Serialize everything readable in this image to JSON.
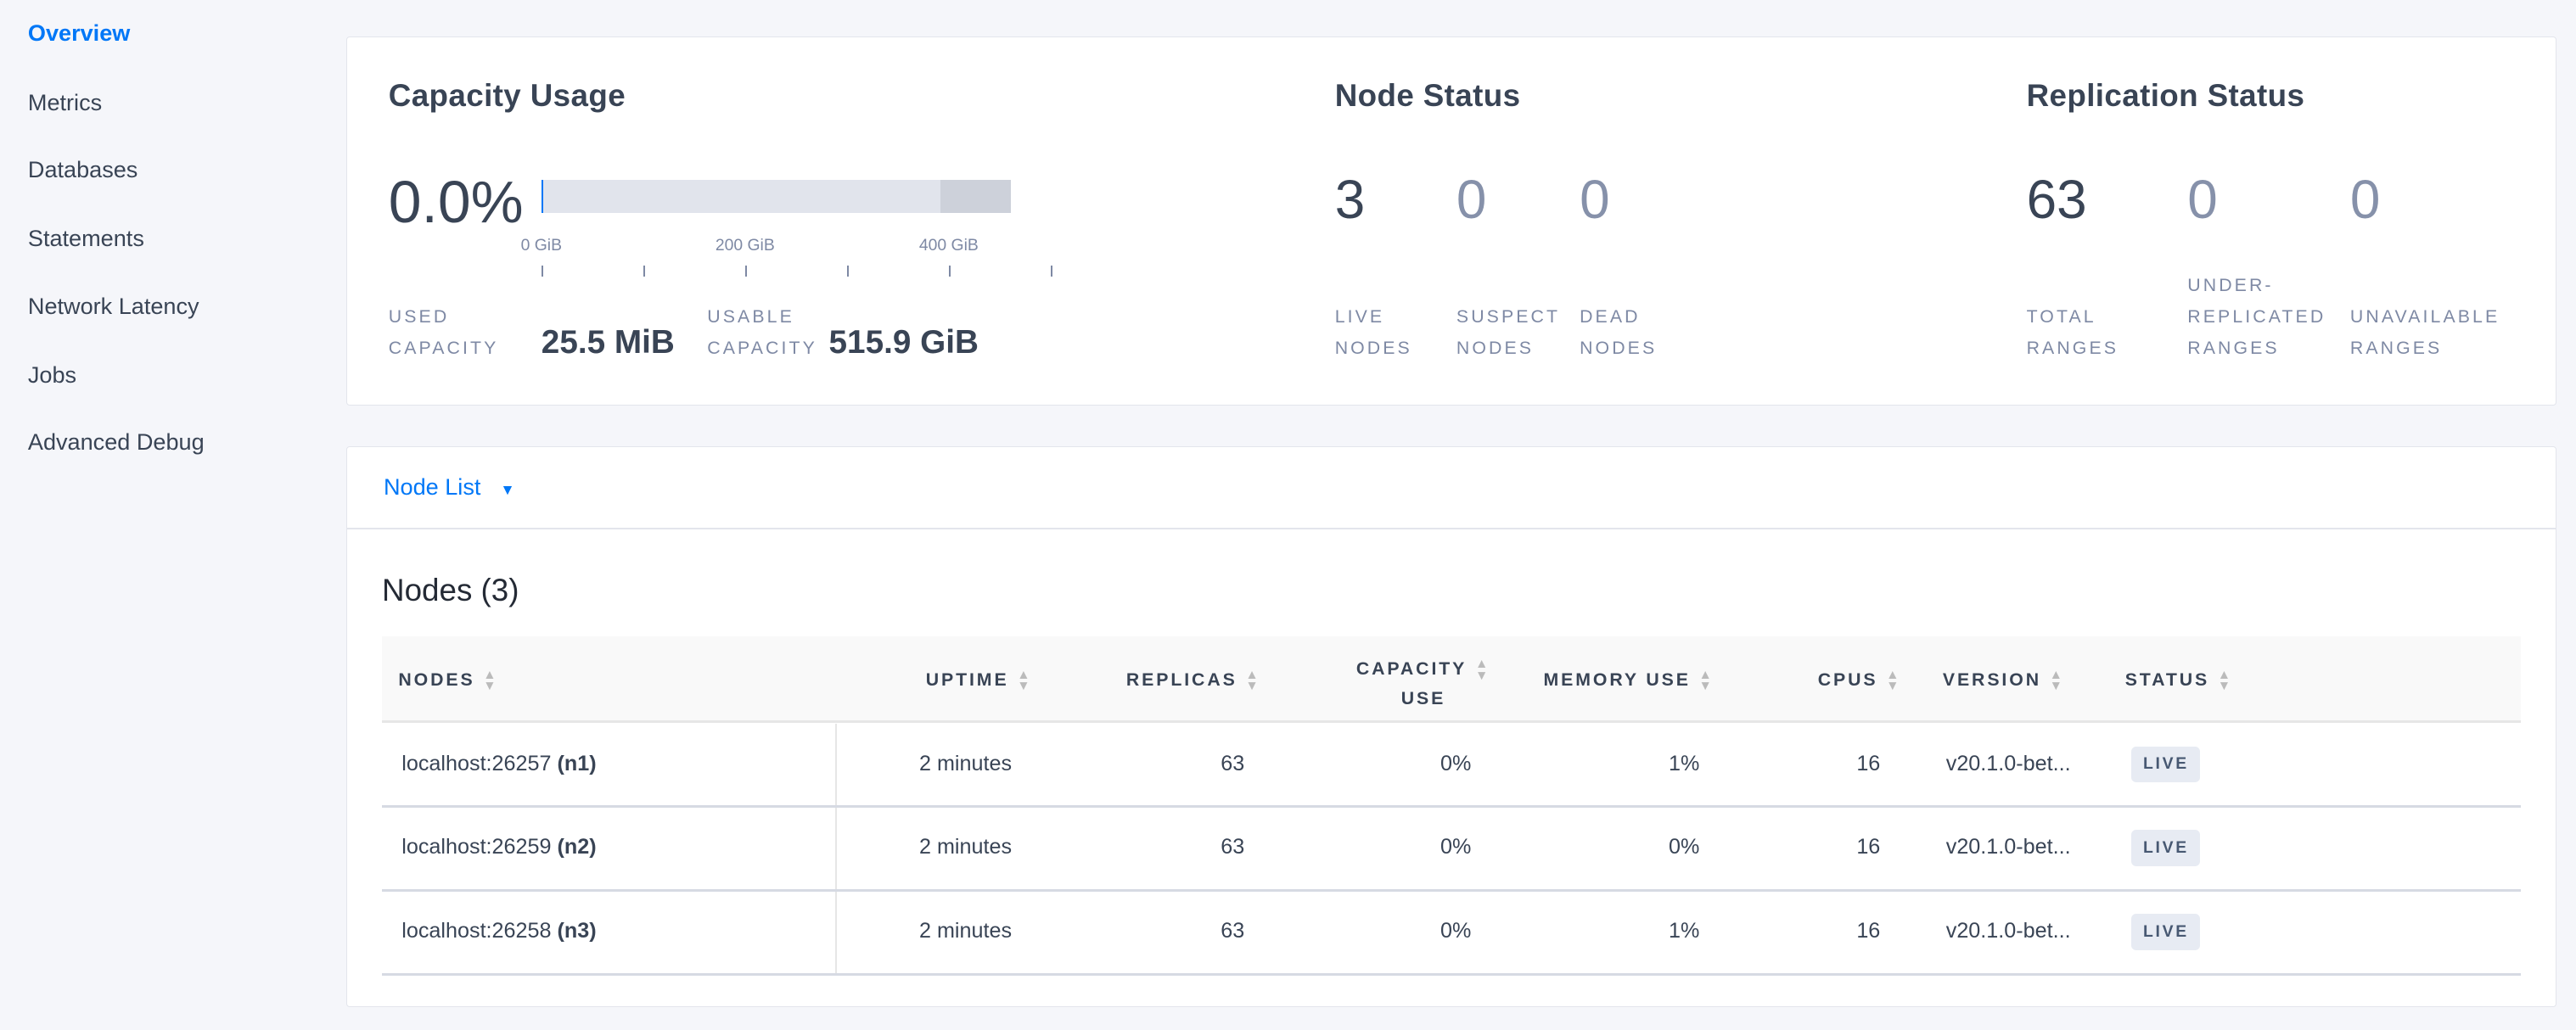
{
  "sidebar": {
    "items": [
      {
        "label": "Overview",
        "active": true
      },
      {
        "label": "Metrics"
      },
      {
        "label": "Databases"
      },
      {
        "label": "Statements"
      },
      {
        "label": "Network Latency"
      },
      {
        "label": "Jobs"
      },
      {
        "label": "Advanced Debug"
      }
    ]
  },
  "capacity": {
    "title": "Capacity Usage",
    "percent": "0.0%",
    "used_fraction": 0.0,
    "ticks": [
      "0 GiB",
      "200 GiB",
      "400 GiB"
    ],
    "used_label_1": "USED",
    "used_label_2": "CAPACITY",
    "used_value": "25.5 MiB",
    "usable_label_1": "USABLE",
    "usable_label_2": "CAPACITY",
    "usable_value": "515.9 GiB"
  },
  "node_status": {
    "title": "Node Status",
    "live": "3",
    "live_label_1": "LIVE",
    "live_label_2": "NODES",
    "suspect": "0",
    "suspect_label_1": "SUSPECT",
    "suspect_label_2": "NODES",
    "dead": "0",
    "dead_label_1": "DEAD",
    "dead_label_2": "NODES"
  },
  "replication": {
    "title": "Replication Status",
    "total": "63",
    "total_label_1": "TOTAL",
    "total_label_2": "RANGES",
    "under": "0",
    "under_label_1": "UNDER-",
    "under_label_2": "REPLICATED",
    "under_label_3": "RANGES",
    "unavail": "0",
    "unavail_label_1": "UNAVAILABLE",
    "unavail_label_2": "RANGES"
  },
  "node_list": {
    "dropdown": "Node List",
    "title": "Nodes (3)",
    "columns": {
      "nodes": "Nodes",
      "uptime": "Uptime",
      "replicas": "Replicas",
      "capacity_1": "Capacity",
      "capacity_2": "Use",
      "memory": "Memory Use",
      "cpus": "CPUs",
      "version": "Version",
      "status": "Status"
    },
    "rows": [
      {
        "address": "localhost:26257",
        "id": "(n1)",
        "uptime": "2 minutes",
        "replicas": "63",
        "capacity": "0%",
        "memory": "1%",
        "cpus": "16",
        "version": "v20.1.0-bet...",
        "status": "LIVE"
      },
      {
        "address": "localhost:26259",
        "id": "(n2)",
        "uptime": "2 minutes",
        "replicas": "63",
        "capacity": "0%",
        "memory": "0%",
        "cpus": "16",
        "version": "v20.1.0-bet...",
        "status": "LIVE"
      },
      {
        "address": "localhost:26258",
        "id": "(n3)",
        "uptime": "2 minutes",
        "replicas": "63",
        "capacity": "0%",
        "memory": "1%",
        "cpus": "16",
        "version": "v20.1.0-bet...",
        "status": "LIVE"
      }
    ]
  },
  "colors": {
    "accent": "#0077f7",
    "text": "#394455",
    "muted": "#7e89a4",
    "bar_bg": "#e1e4ec",
    "bar_reserved": "#cdd1da"
  }
}
